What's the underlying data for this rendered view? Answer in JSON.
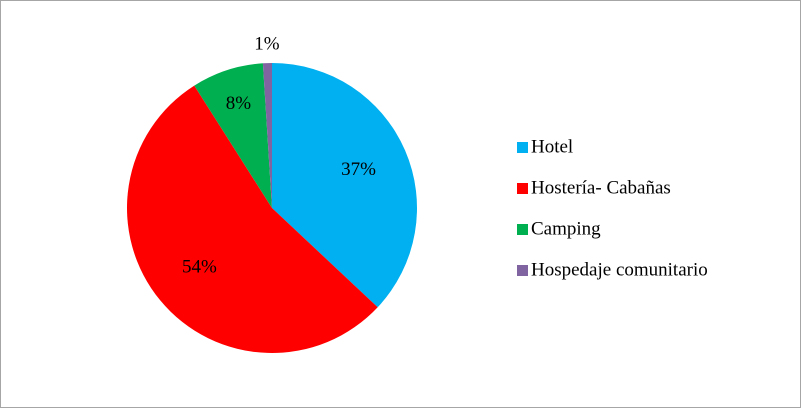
{
  "chart_data": {
    "type": "pie",
    "categories": [
      "Hotel",
      "Hostería- Cabañas",
      "Camping",
      "Hospedaje comunitario"
    ],
    "values": [
      37,
      54,
      8,
      1
    ],
    "value_labels": [
      "37%",
      "54%",
      "8%",
      "1%"
    ],
    "colors": [
      "#00b0f0",
      "#ff0000",
      "#00b050",
      "#8064a2"
    ],
    "legend": "right"
  }
}
